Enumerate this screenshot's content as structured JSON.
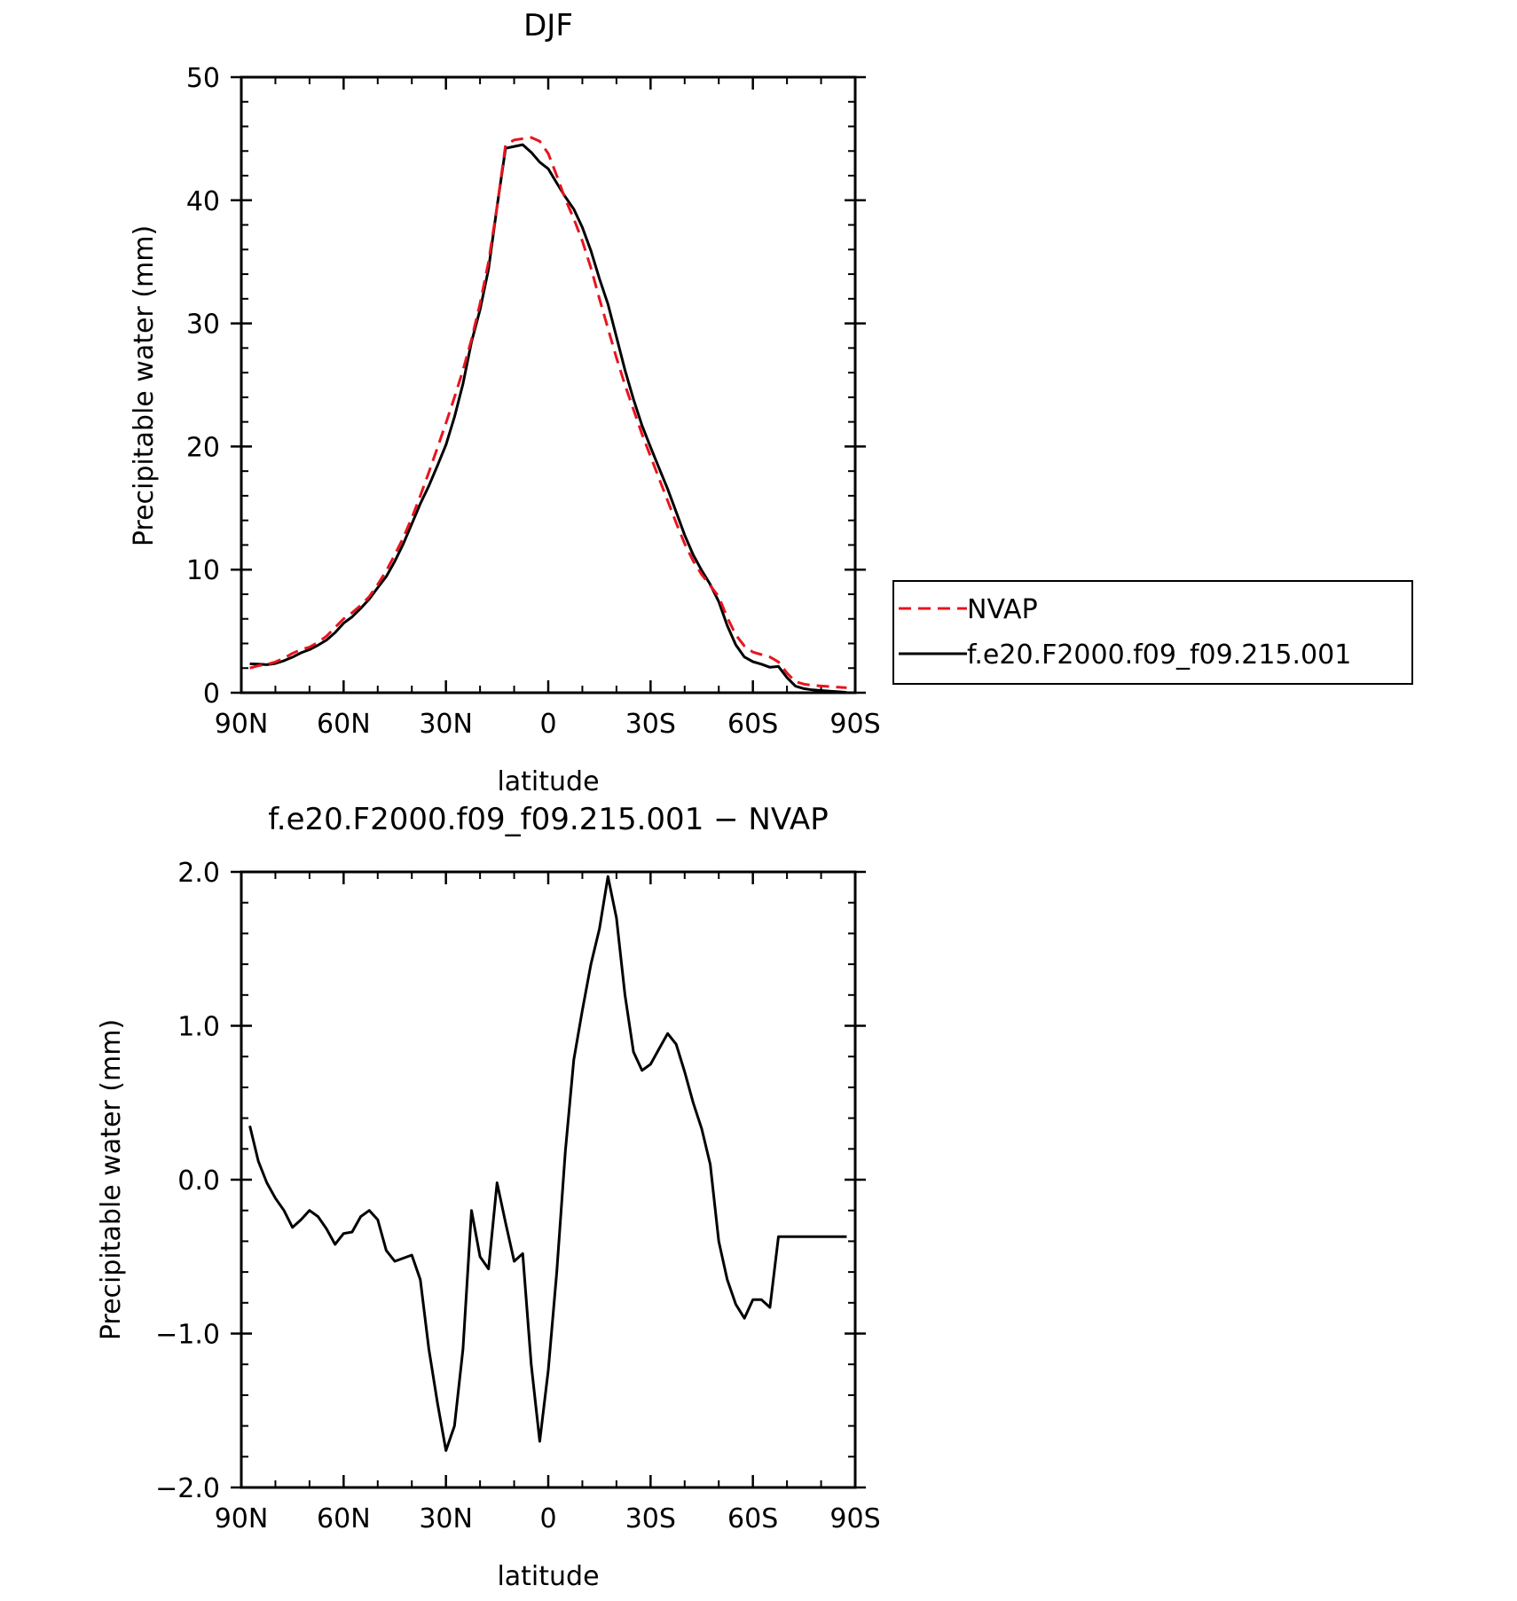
{
  "chart_data": [
    {
      "type": "line",
      "title": "DJF",
      "xlabel": "latitude",
      "ylabel": "Precipitable water (mm)",
      "xlim": [
        90,
        -90
      ],
      "ylim": [
        0,
        50
      ],
      "xticks": [
        {
          "value": 90,
          "label": "90N"
        },
        {
          "value": 60,
          "label": "60N"
        },
        {
          "value": 30,
          "label": "30N"
        },
        {
          "value": 0,
          "label": "0"
        },
        {
          "value": -30,
          "label": "30S"
        },
        {
          "value": -60,
          "label": "60S"
        },
        {
          "value": -90,
          "label": "90S"
        }
      ],
      "yticks": [
        {
          "value": 0,
          "label": "0"
        },
        {
          "value": 10,
          "label": "10"
        },
        {
          "value": 20,
          "label": "20"
        },
        {
          "value": 30,
          "label": "30"
        },
        {
          "value": 40,
          "label": "40"
        },
        {
          "value": 50,
          "label": "50"
        }
      ],
      "legend": "right",
      "grid": false,
      "series": [
        {
          "name": "NVAP",
          "color": "#e8141e",
          "style": "dashed",
          "x": [
            87.5,
            85,
            82.5,
            80,
            77.5,
            75,
            72.5,
            70,
            67.5,
            65,
            62.5,
            60,
            57.5,
            55,
            52.5,
            50,
            47.5,
            45,
            42.5,
            40,
            37.5,
            35,
            32.5,
            30,
            27.5,
            25,
            22.5,
            20,
            17.5,
            15,
            12.5,
            10,
            7.5,
            5,
            2.5,
            0,
            -2.5,
            -5,
            -7.5,
            -10,
            -12.5,
            -15,
            -17.5,
            -20,
            -22.5,
            -25,
            -27.5,
            -30,
            -32.5,
            -35,
            -37.5,
            -40,
            -42.5,
            -45,
            -47.5,
            -50,
            -52.5,
            -55,
            -57.5,
            -60,
            -62.5,
            -65,
            -67.5,
            -70,
            -72.5,
            -75,
            -77.5,
            -80,
            -82.5,
            -85,
            -87.5
          ],
          "y": [
            2.0,
            2.2,
            2.3,
            2.5,
            2.8,
            3.2,
            3.5,
            3.7,
            4.1,
            4.6,
            5.3,
            6.0,
            6.5,
            7.1,
            7.8,
            8.8,
            9.9,
            11.2,
            12.6,
            14.2,
            16.0,
            17.9,
            19.9,
            21.9,
            24.0,
            26.2,
            28.7,
            31.6,
            35.0,
            39.5,
            44.5,
            44.9,
            45.0,
            45.1,
            44.8,
            43.8,
            42.0,
            40.1,
            38.5,
            36.7,
            34.5,
            32.0,
            29.6,
            27.2,
            25.0,
            23.0,
            21.0,
            19.2,
            17.4,
            15.6,
            13.8,
            12.1,
            10.7,
            9.6,
            8.7,
            7.8,
            6.1,
            4.7,
            3.8,
            3.3,
            3.1,
            2.9,
            2.5,
            1.6,
            0.9,
            0.7,
            0.6,
            0.55,
            0.5,
            0.45,
            0.4
          ],
          "y_note": "",
          "dummy": null
        },
        {
          "name": "f.e20.F2000.f09_f09.215.001",
          "color": "#000000",
          "style": "solid",
          "x": [],
          "y": []
        }
      ]
    },
    {
      "type": "line",
      "title": "f.e20.F2000.f09_f09.215.001 − NVAP",
      "xlabel": "latitude",
      "ylabel": "Precipitable water (mm)",
      "xlim": [
        90,
        -90
      ],
      "ylim": [
        -2.0,
        2.0
      ],
      "xticks": [
        {
          "value": 90,
          "label": "90N"
        },
        {
          "value": 60,
          "label": "60N"
        },
        {
          "value": 30,
          "label": "30N"
        },
        {
          "value": 0,
          "label": "0"
        },
        {
          "value": -30,
          "label": "30S"
        },
        {
          "value": -60,
          "label": "60S"
        },
        {
          "value": -90,
          "label": "90S"
        }
      ],
      "yticks": [
        {
          "value": -2.0,
          "label": "−2.0"
        },
        {
          "value": -1.0,
          "label": "−1.0"
        },
        {
          "value": 0.0,
          "label": "0.0"
        },
        {
          "value": 1.0,
          "label": "1.0"
        },
        {
          "value": 2.0,
          "label": "2.0"
        }
      ],
      "grid": false,
      "series": [
        {
          "color": "#000000",
          "style": "solid",
          "x": [
            87.5,
            85,
            82.5,
            80,
            77.5,
            75,
            72.5,
            70,
            67.5,
            65,
            62.5,
            60,
            57.5,
            55,
            52.5,
            50,
            47.5,
            45,
            42.5,
            40,
            37.5,
            35,
            32.5,
            30,
            27.5,
            25,
            22.5,
            20,
            17.5,
            15,
            12.5,
            10,
            7.5,
            5,
            2.5,
            0,
            -2.5,
            -5,
            -7.5,
            -10,
            -12.5,
            -15,
            -17.5,
            -20,
            -22.5,
            -25,
            -27.5,
            -30,
            -32.5,
            -35,
            -37.5,
            -40,
            -42.5,
            -45,
            -47.5,
            -50,
            -52.5,
            -55,
            -57.5,
            -60,
            -62.5,
            -65,
            -67.5,
            -70,
            -72.5,
            -75,
            -77.5,
            -80,
            -82.5,
            -85,
            -87.5
          ],
          "y": [
            0.35,
            0.12,
            -0.02,
            -0.12,
            -0.2,
            -0.31,
            -0.26,
            -0.2,
            -0.24,
            -0.32,
            -0.42,
            -0.35,
            -0.34,
            -0.24,
            -0.2,
            -0.26,
            -0.46,
            -0.53,
            -0.51,
            -0.49,
            -0.65,
            -1.1,
            -1.45,
            -1.76,
            -1.6,
            -1.1,
            -0.2,
            -0.5,
            -0.58,
            -0.02,
            -0.28,
            -0.53,
            -0.48,
            -1.2,
            -1.7,
            -1.24,
            -0.6,
            0.18,
            0.78,
            1.1,
            1.4,
            1.63,
            1.97,
            1.7,
            1.2,
            0.83,
            0.71,
            0.75,
            0.85,
            0.95,
            0.88,
            0.7,
            0.5,
            0.33,
            0.1,
            -0.4,
            -0.65,
            -0.81,
            -0.9,
            -0.78,
            -0.78,
            -0.83,
            -0.37,
            -0.37,
            -0.37,
            -0.37,
            -0.37,
            -0.37,
            -0.37,
            -0.37,
            -0.37
          ]
        }
      ]
    }
  ]
}
